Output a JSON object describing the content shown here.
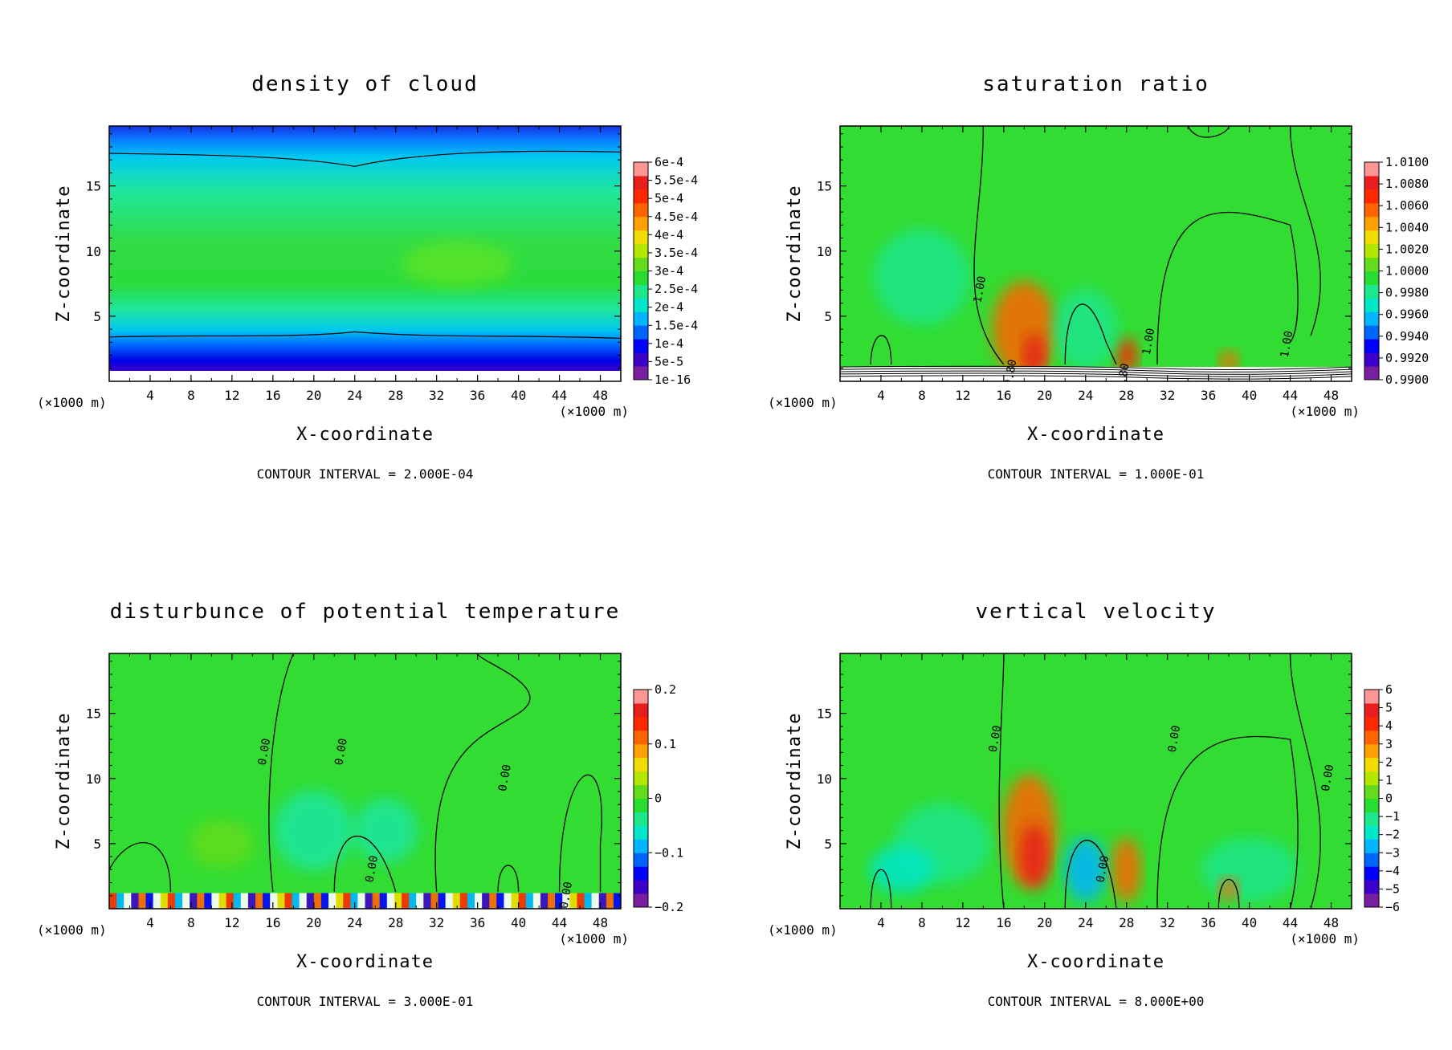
{
  "colors": {
    "scale": [
      "#7a1ea0",
      "#3c00c8",
      "#0000ff",
      "#0064ff",
      "#00b4ff",
      "#00e6c8",
      "#1ee68c",
      "#28dc32",
      "#64dc1e",
      "#b4e600",
      "#f0dc00",
      "#ffa000",
      "#ff6400",
      "#ff2800",
      "#e61e1e",
      "#ff9696"
    ],
    "background": "#ffffff"
  },
  "chart_data": [
    {
      "type": "heatmap",
      "title": "density of cloud",
      "xlabel": "X-coordinate",
      "ylabel": "Z-coordinate",
      "x_unit": "(×1000 m)",
      "x_unit_left": "(×1000 m)",
      "xlim": [
        0,
        50
      ],
      "ylim": [
        0,
        19.6
      ],
      "xticks": [
        "4",
        "8",
        "12",
        "16",
        "20",
        "24",
        "28",
        "32",
        "36",
        "40",
        "44",
        "48"
      ],
      "yticks": [
        "5",
        "10",
        "15"
      ],
      "colorbar": [
        "1e-16",
        "5e-5",
        "1e-4",
        "1.5e-4",
        "2e-4",
        "2.5e-4",
        "3e-4",
        "3.5e-4",
        "4e-4",
        "4.5e-4",
        "5e-4",
        "5.5e-4",
        "6e-4"
      ],
      "contour_interval": "CONTOUR INTERVAL = 2.000E-04",
      "contour_labels": []
    },
    {
      "type": "heatmap",
      "title": "saturation ratio",
      "xlabel": "X-coordinate",
      "ylabel": "Z-coordinate",
      "x_unit": "(×1000 m)",
      "x_unit_left": "(×1000 m)",
      "xlim": [
        0,
        50
      ],
      "ylim": [
        0,
        19.6
      ],
      "xticks": [
        "4",
        "8",
        "12",
        "16",
        "20",
        "24",
        "28",
        "32",
        "36",
        "40",
        "44",
        "48"
      ],
      "yticks": [
        "5",
        "10",
        "15"
      ],
      "colorbar": [
        "0.9900",
        "0.9920",
        "0.9940",
        "0.9960",
        "0.9980",
        "1.0000",
        "1.0020",
        "1.0040",
        "1.0060",
        "1.0080",
        "1.0100"
      ],
      "contour_interval": "CONTOUR INTERVAL = 1.000E-01",
      "contour_labels": [
        "1.00",
        "1.00",
        "1.00",
        "0.80",
        "0.80"
      ]
    },
    {
      "type": "heatmap",
      "title": "disturbunce of potential temperature",
      "xlabel": "X-coordinate",
      "ylabel": "Z-coordinate",
      "x_unit": "(×1000 m)",
      "x_unit_left": "(×1000 m)",
      "xlim": [
        0,
        50
      ],
      "ylim": [
        0,
        19.6
      ],
      "xticks": [
        "4",
        "8",
        "12",
        "16",
        "20",
        "24",
        "28",
        "32",
        "36",
        "40",
        "44",
        "48"
      ],
      "yticks": [
        "5",
        "10",
        "15"
      ],
      "colorbar": [
        "−0.2",
        "−0.1",
        "0",
        "0.1",
        "0.2"
      ],
      "contour_interval": "CONTOUR INTERVAL = 3.000E-01",
      "contour_labels": [
        "0.00",
        "0.00",
        "0.00",
        "0.00",
        "0.00"
      ]
    },
    {
      "type": "heatmap",
      "title": "vertical velocity",
      "xlabel": "X-coordinate",
      "ylabel": "Z-coordinate",
      "x_unit": "(×1000 m)",
      "x_unit_left": "(×1000 m)",
      "xlim": [
        0,
        50
      ],
      "ylim": [
        0,
        19.6
      ],
      "xticks": [
        "4",
        "8",
        "12",
        "16",
        "20",
        "24",
        "28",
        "32",
        "36",
        "40",
        "44",
        "48"
      ],
      "yticks": [
        "5",
        "10",
        "15"
      ],
      "colorbar": [
        "−6",
        "−5",
        "−4",
        "−3",
        "−2",
        "−1",
        "0",
        "1",
        "2",
        "3",
        "4",
        "5",
        "6"
      ],
      "contour_interval": "CONTOUR INTERVAL = 8.000E+00",
      "contour_labels": [
        "0.00",
        "0.00",
        "0.00",
        "0.00"
      ]
    }
  ]
}
